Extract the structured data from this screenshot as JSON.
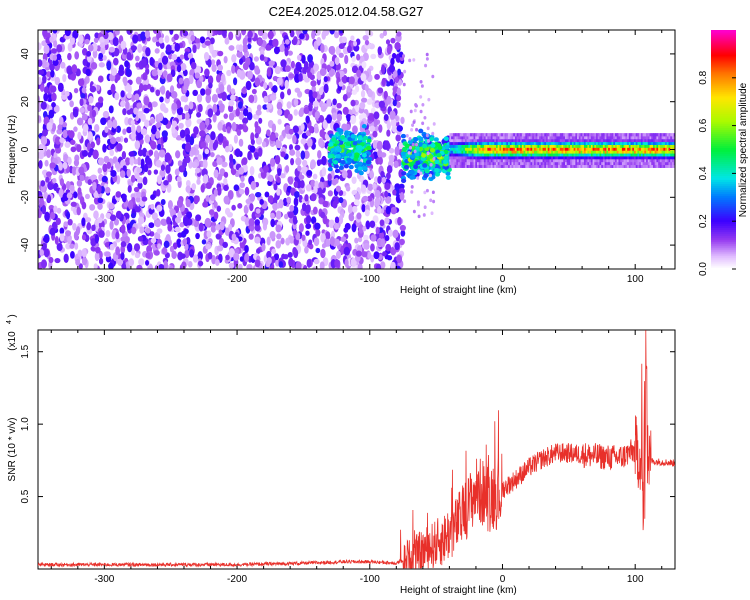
{
  "title": "C2E4.2025.012.04.58.G27",
  "chart_data": [
    {
      "type": "heatmap",
      "panel": "top",
      "xlabel": "Height of straight line (km)",
      "ylabel": "Frequency (Hz)",
      "xlim": [
        -350,
        130
      ],
      "ylim": [
        -50,
        50
      ],
      "xticks": [
        -300,
        -200,
        -100,
        0,
        100
      ],
      "yticks": [
        -40,
        -20,
        0,
        20,
        40
      ],
      "colorbar": {
        "label": "Normalized spectral amplitude",
        "range": [
          0,
          1
        ],
        "ticks": [
          "0.0",
          "0.2",
          "0.4",
          "0.6",
          "0.8"
        ],
        "colormap": "rainbow (white-violet-blue-cyan-green-yellow-red-magenta)"
      },
      "regions": [
        {
          "x_range": [
            -350,
            -75
          ],
          "description": "broadband noise filling all frequencies",
          "level": 0.08
        },
        {
          "x_range": [
            -130,
            -100
          ],
          "center_hz": 0,
          "half_width_hz": 12,
          "level": 0.35
        },
        {
          "x_range": [
            -75,
            -40
          ],
          "center_hz": -3,
          "half_width_hz": 12,
          "level": 0.45
        },
        {
          "x_range": [
            -40,
            130
          ],
          "center_hz": 0,
          "half_width_hz": 3,
          "level": 0.85
        }
      ],
      "grid": false
    },
    {
      "type": "line",
      "panel": "bottom",
      "xlabel": "Height of straight line (km)",
      "ylabel": "SNR (10 * v/v)",
      "y_multiplier": "(x10^4)",
      "xlim": [
        -350,
        130
      ],
      "ylim": [
        0,
        1.65
      ],
      "xticks": [
        -300,
        -200,
        -100,
        0,
        100
      ],
      "yticks": [
        0.5,
        1.0,
        1.5
      ],
      "ytick_labels": [
        "0.5",
        "1.0",
        "1.5"
      ],
      "series": [
        {
          "color": "#e8302a",
          "x": [
            -350,
            -300,
            -250,
            -200,
            -150,
            -120,
            -100,
            -80,
            -65,
            -55,
            -45,
            -35,
            -25,
            -20,
            -10,
            0,
            10,
            20,
            30,
            40,
            50,
            60,
            70,
            80,
            90,
            95,
            100,
            104,
            107,
            108,
            110,
            115,
            120,
            130
          ],
          "y": [
            0.03,
            0.03,
            0.03,
            0.03,
            0.04,
            0.05,
            0.05,
            0.04,
            0.1,
            0.15,
            0.2,
            0.3,
            0.45,
            0.55,
            0.5,
            0.55,
            0.62,
            0.7,
            0.76,
            0.8,
            0.8,
            0.79,
            0.78,
            0.77,
            0.77,
            0.8,
            0.82,
            0.78,
            0.25,
            1.45,
            0.75,
            0.74,
            0.74,
            0.73
          ]
        }
      ],
      "grid": false
    }
  ]
}
